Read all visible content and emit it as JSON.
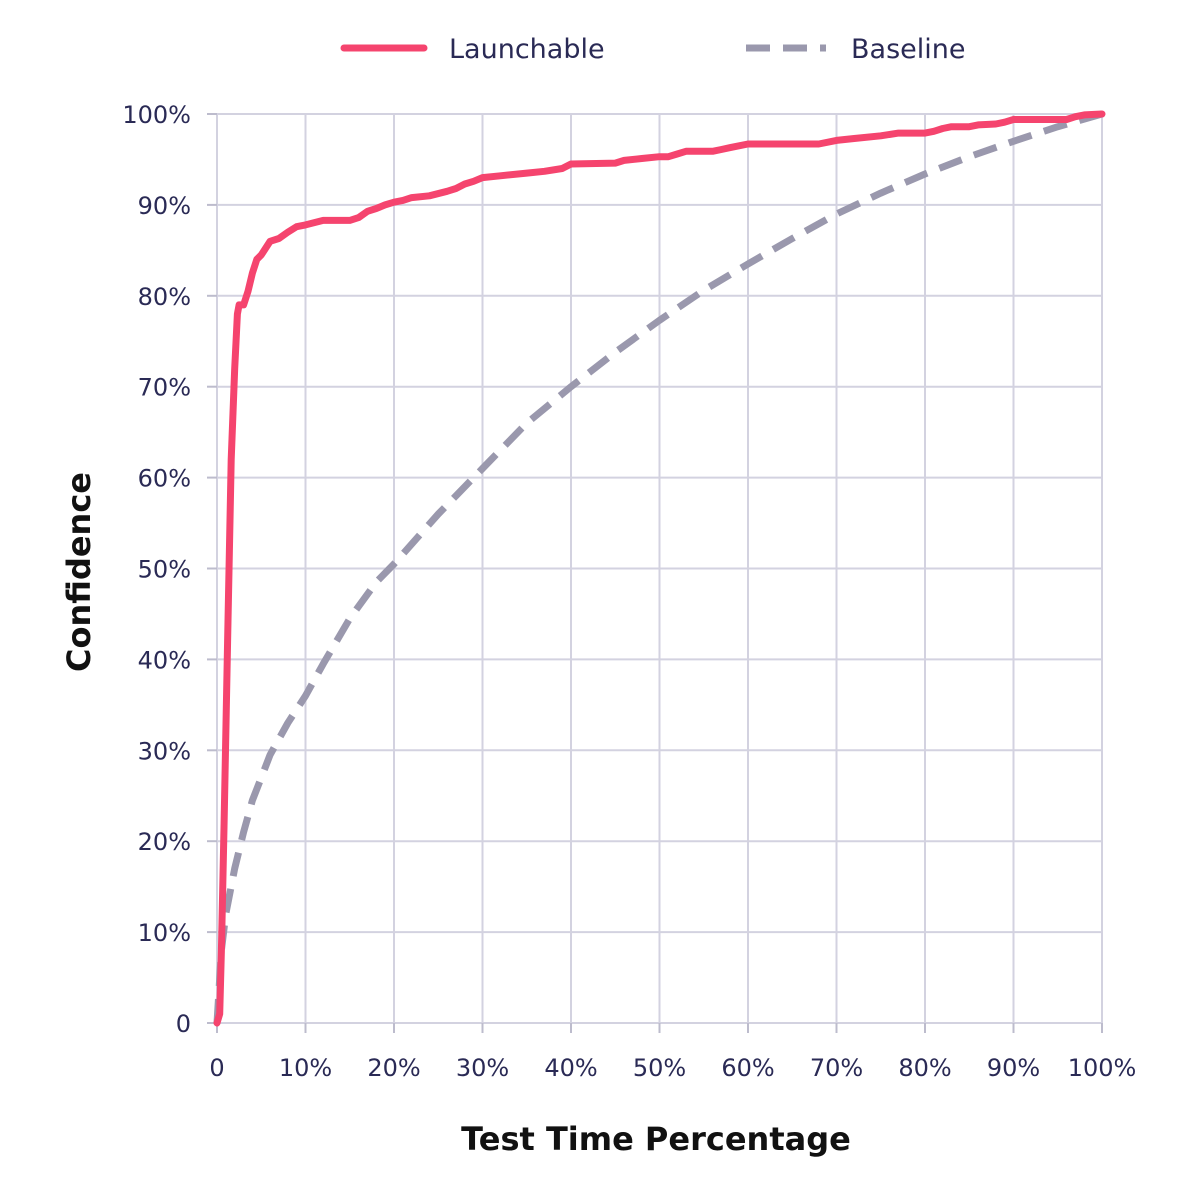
{
  "chart_data": {
    "type": "line",
    "xlabel": "Test Time Percentage",
    "ylabel": "Confidence",
    "xlim": [
      0,
      100
    ],
    "ylim": [
      0,
      100
    ],
    "x_ticks": [
      0,
      10,
      20,
      30,
      40,
      50,
      60,
      70,
      80,
      90,
      100
    ],
    "y_ticks": [
      0,
      10,
      20,
      30,
      40,
      50,
      60,
      70,
      80,
      90,
      100
    ],
    "x_tick_labels": [
      "0",
      "10%",
      "20%",
      "30%",
      "40%",
      "50%",
      "60%",
      "70%",
      "80%",
      "90%",
      "100%"
    ],
    "y_tick_labels": [
      "0",
      "10%",
      "20%",
      "30%",
      "40%",
      "50%",
      "60%",
      "70%",
      "80%",
      "90%",
      "100%"
    ],
    "grid": true,
    "legend_position": "top-center",
    "series": [
      {
        "name": "Launchable",
        "color": "#f5446e",
        "style": "solid",
        "x": [
          0,
          0.3,
          0.5,
          0.8,
          1.2,
          1.6,
          2.0,
          2.3,
          2.5,
          3.0,
          3.5,
          4.0,
          4.5,
          5.0,
          6.0,
          7.0,
          8.0,
          9.0,
          10.0,
          12.0,
          13.0,
          15.0,
          16.0,
          17.0,
          18.0,
          19.0,
          20.0,
          21.0,
          22.0,
          24.0,
          26.0,
          27.0,
          28.0,
          29.0,
          30.0,
          32.0,
          35.0,
          37.0,
          39.0,
          40.0,
          45.0,
          46.0,
          48.0,
          50.0,
          51.0,
          52.0,
          53.0,
          56.0,
          57.0,
          58.0,
          60.0,
          68.0,
          70.0,
          72.0,
          75.0,
          77.0,
          80.0,
          81.0,
          82.0,
          83.0,
          85.0,
          86.0,
          88.0,
          89.0,
          90.0,
          96.0,
          97.0,
          98.0,
          100.0
        ],
        "y": [
          0,
          1,
          8,
          22,
          42,
          62,
          72,
          78,
          79,
          79,
          80.5,
          82.5,
          84,
          84.5,
          86,
          86.3,
          87,
          87.6,
          87.8,
          88.3,
          88.3,
          88.3,
          88.6,
          89.3,
          89.6,
          90.0,
          90.3,
          90.5,
          90.8,
          91.0,
          91.5,
          91.8,
          92.3,
          92.6,
          93.0,
          93.2,
          93.5,
          93.7,
          94.0,
          94.5,
          94.6,
          94.9,
          95.1,
          95.3,
          95.3,
          95.6,
          95.9,
          95.9,
          96.1,
          96.3,
          96.7,
          96.7,
          97.1,
          97.3,
          97.6,
          97.9,
          97.9,
          98.1,
          98.4,
          98.6,
          98.6,
          98.8,
          98.9,
          99.1,
          99.4,
          99.4,
          99.7,
          99.9,
          100.0
        ]
      },
      {
        "name": "Baseline",
        "color": "#9a98ad",
        "style": "dashed",
        "x": [
          0,
          0.5,
          1,
          2,
          3,
          4,
          5,
          6,
          8,
          10,
          12,
          15,
          18,
          20,
          25,
          30,
          35,
          40,
          45,
          50,
          55,
          60,
          65,
          70,
          75,
          80,
          85,
          90,
          95,
          100
        ],
        "y": [
          0,
          8,
          12,
          17,
          21,
          24.5,
          27,
          29.5,
          33,
          36,
          39.5,
          44.5,
          48.5,
          50.5,
          56,
          61,
          66,
          70,
          73.8,
          77.3,
          80.6,
          83.5,
          86.3,
          89,
          91.3,
          93.4,
          95.3,
          97,
          98.6,
          100
        ]
      }
    ]
  }
}
